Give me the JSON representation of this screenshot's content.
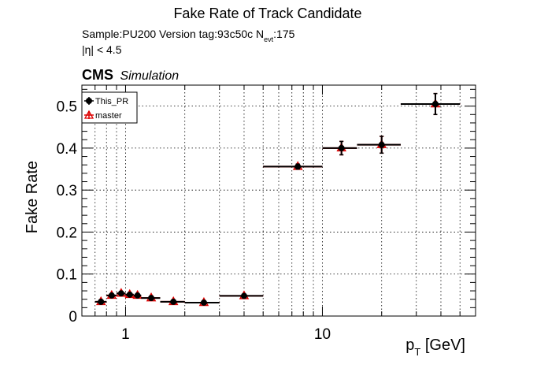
{
  "header": {
    "title": "Fake Rate of Track Candidate",
    "sample_line": "Sample:PU200   Version tag:93c50c  N",
    "nevt_subscript": "evt",
    "nevt_value": ":175",
    "eta_cut": "|η| < 4.5"
  },
  "cms_label": {
    "cms": "CMS",
    "simulation": "Simulation"
  },
  "colors": {
    "this_pr": "#000000",
    "master": "#dd0000",
    "grid": "#000000",
    "frame": "#000000"
  },
  "chart_data": {
    "type": "scatter",
    "title": "Fake Rate of Track Candidate",
    "xlabel_main": "p",
    "xlabel_sub": "T",
    "xlabel_unit": " [GeV]",
    "ylabel": "Fake Rate",
    "x_scale": "log",
    "xlim": [
      0.6,
      60
    ],
    "ylim": [
      0,
      0.55
    ],
    "grid": true,
    "legend_placement": "top-left",
    "x_ticks": [
      {
        "value": 1,
        "label": "1"
      },
      {
        "value": 10,
        "label": "10"
      }
    ],
    "y_ticks": [
      {
        "value": 0,
        "label": "0"
      },
      {
        "value": 0.1,
        "label": "0.1"
      },
      {
        "value": 0.2,
        "label": "0.2"
      },
      {
        "value": 0.3,
        "label": "0.3"
      },
      {
        "value": 0.4,
        "label": "0.4"
      },
      {
        "value": 0.5,
        "label": "0.5"
      }
    ],
    "series": [
      {
        "name": "This_PR",
        "marker": "circle",
        "points": [
          {
            "x": 0.75,
            "xlo": 0.7,
            "xhi": 0.8,
            "y": 0.034,
            "yerr": 0.004
          },
          {
            "x": 0.85,
            "xlo": 0.8,
            "xhi": 0.9,
            "y": 0.049,
            "yerr": 0.004
          },
          {
            "x": 0.95,
            "xlo": 0.9,
            "xhi": 1.0,
            "y": 0.054,
            "yerr": 0.004
          },
          {
            "x": 1.05,
            "xlo": 1.0,
            "xhi": 1.1,
            "y": 0.051,
            "yerr": 0.004
          },
          {
            "x": 1.15,
            "xlo": 1.1,
            "xhi": 1.2,
            "y": 0.049,
            "yerr": 0.004
          },
          {
            "x": 1.35,
            "xlo": 1.2,
            "xhi": 1.5,
            "y": 0.043,
            "yerr": 0.003
          },
          {
            "x": 1.75,
            "xlo": 1.5,
            "xhi": 2.0,
            "y": 0.034,
            "yerr": 0.003
          },
          {
            "x": 2.5,
            "xlo": 2.0,
            "xhi": 3.0,
            "y": 0.032,
            "yerr": 0.003
          },
          {
            "x": 4.0,
            "xlo": 3.0,
            "xhi": 5.0,
            "y": 0.048,
            "yerr": 0.004
          },
          {
            "x": 7.5,
            "xlo": 5.0,
            "xhi": 10.0,
            "y": 0.356,
            "yerr": 0.006
          },
          {
            "x": 12.5,
            "xlo": 10.0,
            "xhi": 15.0,
            "y": 0.4,
            "yerr": 0.016
          },
          {
            "x": 20.0,
            "xlo": 15.0,
            "xhi": 25.0,
            "y": 0.408,
            "yerr": 0.02
          },
          {
            "x": 37.5,
            "xlo": 25.0,
            "xhi": 50.0,
            "y": 0.505,
            "yerr": 0.025
          }
        ]
      },
      {
        "name": "master",
        "marker": "triangle",
        "points": [
          {
            "x": 0.75,
            "xlo": 0.7,
            "xhi": 0.8,
            "y": 0.034,
            "yerr": 0.004
          },
          {
            "x": 0.85,
            "xlo": 0.8,
            "xhi": 0.9,
            "y": 0.049,
            "yerr": 0.004
          },
          {
            "x": 0.95,
            "xlo": 0.9,
            "xhi": 1.0,
            "y": 0.054,
            "yerr": 0.004
          },
          {
            "x": 1.05,
            "xlo": 1.0,
            "xhi": 1.1,
            "y": 0.051,
            "yerr": 0.004
          },
          {
            "x": 1.15,
            "xlo": 1.1,
            "xhi": 1.2,
            "y": 0.049,
            "yerr": 0.004
          },
          {
            "x": 1.35,
            "xlo": 1.2,
            "xhi": 1.5,
            "y": 0.043,
            "yerr": 0.003
          },
          {
            "x": 1.75,
            "xlo": 1.5,
            "xhi": 2.0,
            "y": 0.034,
            "yerr": 0.003
          },
          {
            "x": 2.5,
            "xlo": 2.0,
            "xhi": 3.0,
            "y": 0.032,
            "yerr": 0.003
          },
          {
            "x": 4.0,
            "xlo": 3.0,
            "xhi": 5.0,
            "y": 0.048,
            "yerr": 0.004
          },
          {
            "x": 7.5,
            "xlo": 5.0,
            "xhi": 10.0,
            "y": 0.356,
            "yerr": 0.006
          },
          {
            "x": 12.5,
            "xlo": 10.0,
            "xhi": 15.0,
            "y": 0.4,
            "yerr": 0.016
          },
          {
            "x": 20.0,
            "xlo": 15.0,
            "xhi": 25.0,
            "y": 0.408,
            "yerr": 0.02
          },
          {
            "x": 37.5,
            "xlo": 25.0,
            "xhi": 50.0,
            "y": 0.505,
            "yerr": 0.025
          }
        ]
      }
    ]
  }
}
